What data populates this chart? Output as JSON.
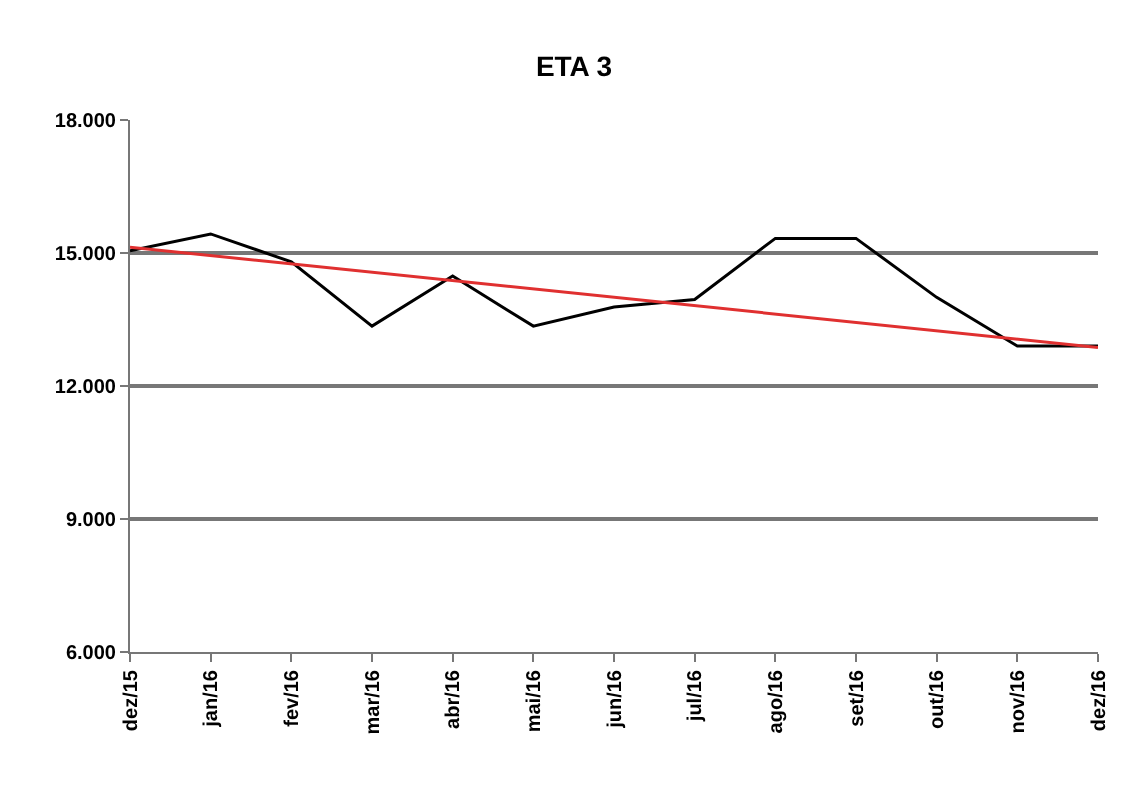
{
  "chart_data": {
    "type": "line",
    "title": "ETA 3",
    "categories": [
      "dez/15",
      "jan/16",
      "fev/16",
      "mar/16",
      "abr/16",
      "mai/16",
      "jun/16",
      "jul/16",
      "ago/16",
      "set/16",
      "out/16",
      "nov/16",
      "dez/16"
    ],
    "series": [
      {
        "color": "#000000",
        "values": [
          15050,
          15430,
          14800,
          13350,
          14480,
          13350,
          13780,
          13950,
          15330,
          15330,
          14000,
          12900,
          12900
        ]
      },
      {
        "type": "line",
        "color": "#e03030",
        "x": [
          "dez/15",
          "dez/16"
        ],
        "values": [
          15130,
          12870
        ]
      }
    ],
    "ylim": [
      6000,
      18000
    ],
    "yticks": [
      {
        "value": 6000,
        "label": "6.000"
      },
      {
        "value": 9000,
        "label": "9.000"
      },
      {
        "value": 12000,
        "label": "12.000"
      },
      {
        "value": 15000,
        "label": "15.000"
      },
      {
        "value": 18000,
        "label": "18.000"
      }
    ],
    "grid": "y",
    "legend": false
  }
}
